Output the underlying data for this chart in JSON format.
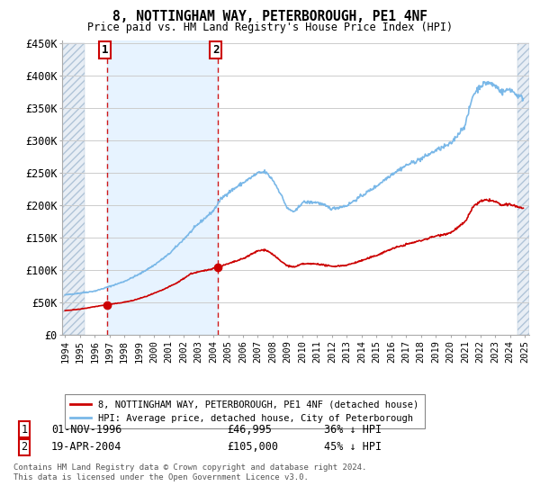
{
  "title": "8, NOTTINGHAM WAY, PETERBOROUGH, PE1 4NF",
  "subtitle": "Price paid vs. HM Land Registry's House Price Index (HPI)",
  "ylim": [
    0,
    450000
  ],
  "yticks": [
    0,
    50000,
    100000,
    150000,
    200000,
    250000,
    300000,
    350000,
    400000,
    450000
  ],
  "ytick_labels": [
    "£0",
    "£50K",
    "£100K",
    "£150K",
    "£200K",
    "£250K",
    "£300K",
    "£350K",
    "£400K",
    "£450K"
  ],
  "hpi_color": "#7ab8e8",
  "price_color": "#cc0000",
  "sale1_date": 1996.83,
  "sale1_price": 46995,
  "sale2_date": 2004.3,
  "sale2_price": 105000,
  "background_color": "#ffffff",
  "grid_color": "#cccccc",
  "legend_label_price": "8, NOTTINGHAM WAY, PETERBOROUGH, PE1 4NF (detached house)",
  "legend_label_hpi": "HPI: Average price, detached house, City of Peterborough",
  "footer1": "Contains HM Land Registry data © Crown copyright and database right 2024.",
  "footer2": "This data is licensed under the Open Government Licence v3.0.",
  "table_row1": [
    "1",
    "01-NOV-1996",
    "£46,995",
    "36% ↓ HPI"
  ],
  "table_row2": [
    "2",
    "19-APR-2004",
    "£105,000",
    "45% ↓ HPI"
  ],
  "hpi_key_years": [
    1994.0,
    1995.0,
    1996.0,
    1997.0,
    1998.0,
    1999.0,
    2000.0,
    2001.0,
    2002.0,
    2003.0,
    2004.0,
    2004.5,
    2005.0,
    2006.0,
    2007.0,
    2007.5,
    2008.0,
    2008.5,
    2009.0,
    2009.5,
    2010.0,
    2011.0,
    2012.0,
    2013.0,
    2014.0,
    2015.0,
    2016.0,
    2017.0,
    2018.0,
    2019.0,
    2020.0,
    2021.0,
    2021.5,
    2022.0,
    2022.5,
    2023.0,
    2023.5,
    2024.0,
    2024.5,
    2024.9
  ],
  "hpi_key_vals": [
    62000,
    65000,
    68000,
    75000,
    83000,
    94000,
    108000,
    125000,
    148000,
    172000,
    192000,
    210000,
    220000,
    235000,
    250000,
    252000,
    240000,
    220000,
    195000,
    190000,
    205000,
    205000,
    195000,
    200000,
    215000,
    230000,
    248000,
    262000,
    272000,
    285000,
    295000,
    325000,
    370000,
    385000,
    390000,
    385000,
    375000,
    380000,
    370000,
    365000
  ],
  "price_key_years": [
    1994.0,
    1995.0,
    1996.0,
    1996.83,
    1997.5,
    1998.5,
    1999.5,
    2000.5,
    2001.5,
    2002.5,
    2003.5,
    2004.3,
    2005.0,
    2006.0,
    2007.0,
    2007.5,
    2008.0,
    2008.5,
    2009.0,
    2009.5,
    2010.0,
    2011.0,
    2012.0,
    2013.0,
    2014.0,
    2015.0,
    2016.0,
    2017.0,
    2018.0,
    2019.0,
    2020.0,
    2021.0,
    2021.5,
    2022.0,
    2022.5,
    2023.0,
    2023.5,
    2024.0,
    2024.5,
    2024.9
  ],
  "price_key_vals": [
    38000,
    40000,
    44000,
    46995,
    49000,
    53000,
    60000,
    69000,
    80000,
    95000,
    100000,
    105000,
    110000,
    118000,
    130000,
    132000,
    125000,
    115000,
    107000,
    105000,
    110000,
    110000,
    106000,
    108000,
    115000,
    123000,
    133000,
    140000,
    146000,
    153000,
    158000,
    175000,
    198000,
    206000,
    209000,
    206000,
    200000,
    202000,
    198000,
    196000
  ]
}
